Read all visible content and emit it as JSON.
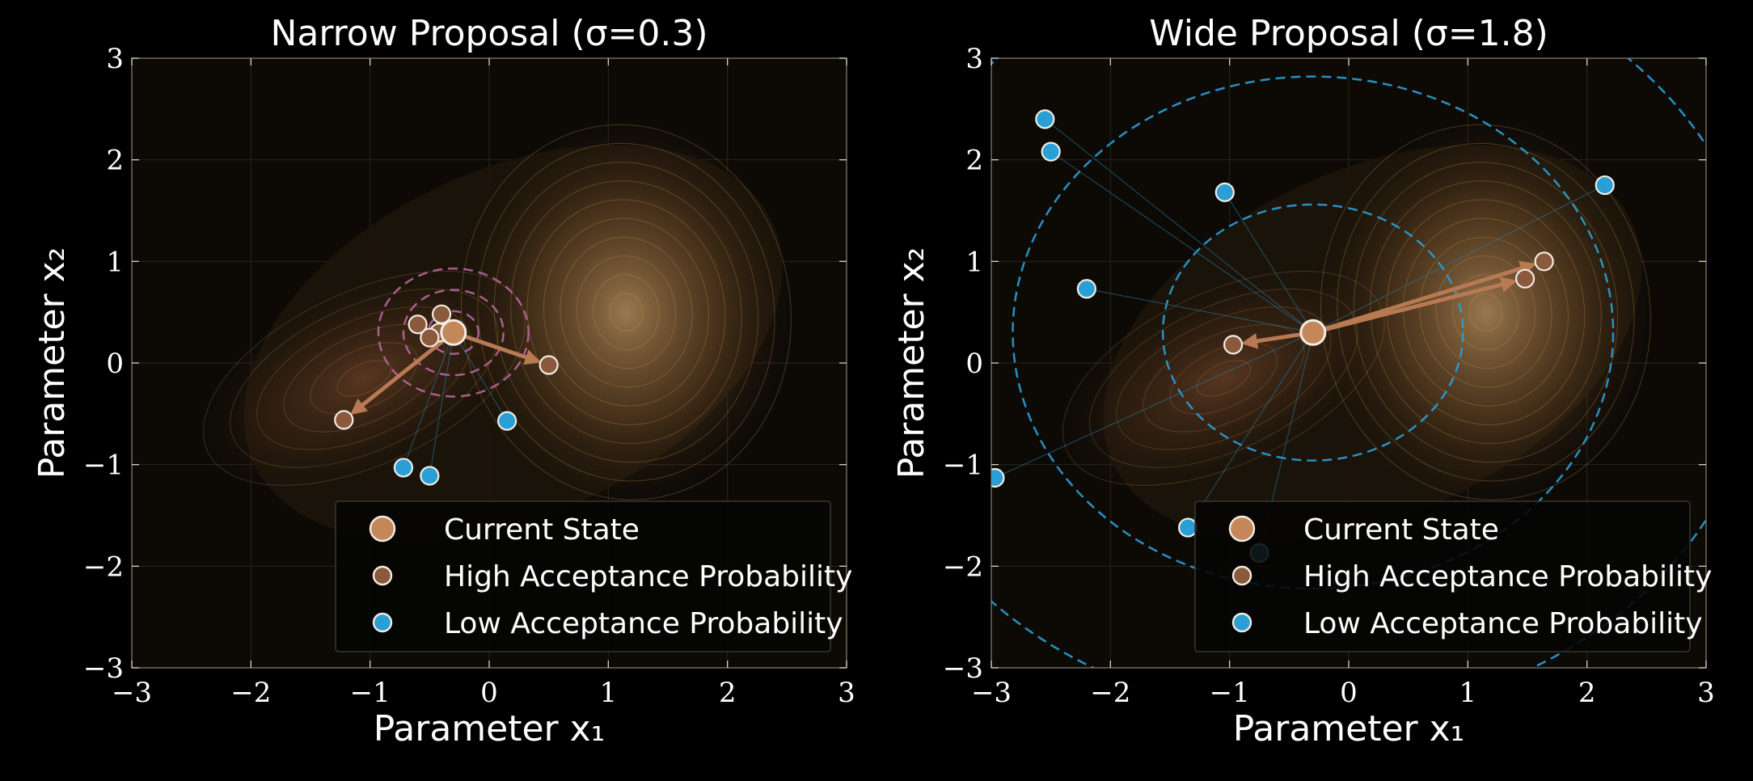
{
  "chart_data": [
    {
      "type": "scatter",
      "title": "Narrow Proposal (σ=0.3)",
      "xlabel": "Parameter x₁",
      "ylabel": "Parameter x₂",
      "xlim": [
        -3,
        3
      ],
      "ylim": [
        -3,
        3
      ],
      "xticks": [
        "−3",
        "−2",
        "−1",
        "0",
        "1",
        "2",
        "3"
      ],
      "yticks": [
        "−3",
        "−2",
        "−1",
        "0",
        "1",
        "2",
        "3"
      ],
      "grid": true,
      "legend_position": "lower-right",
      "sigma": 0.3,
      "proposal_ring_color": "#b5679a",
      "current_state": [
        -0.3,
        0.3
      ],
      "high_acceptance": [
        [
          -0.6,
          0.38
        ],
        [
          -0.4,
          0.48
        ],
        [
          -0.42,
          0.3
        ],
        [
          -0.5,
          0.25
        ],
        [
          0.5,
          -0.02
        ],
        [
          -1.22,
          -0.56
        ]
      ],
      "low_acceptance": [
        [
          0.15,
          -0.57
        ],
        [
          -0.72,
          -1.03
        ],
        [
          -0.5,
          -1.11
        ]
      ],
      "arrows_to": [
        [
          0.5,
          -0.02
        ],
        [
          -1.22,
          -0.56
        ]
      ]
    },
    {
      "type": "scatter",
      "title": "Wide Proposal (σ=1.8)",
      "xlabel": "Parameter x₁",
      "ylabel": "Parameter x₂",
      "xlim": [
        -3,
        3
      ],
      "ylim": [
        -3,
        3
      ],
      "xticks": [
        "−3",
        "−2",
        "−1",
        "0",
        "1",
        "2",
        "3"
      ],
      "yticks": [
        "−3",
        "−2",
        "−1",
        "0",
        "1",
        "2",
        "3"
      ],
      "grid": true,
      "legend_position": "lower-right",
      "sigma": 1.8,
      "proposal_ring_color": "#2a9fd6",
      "current_state": [
        -0.3,
        0.3
      ],
      "high_acceptance": [
        [
          -0.97,
          0.18
        ],
        [
          1.48,
          0.83
        ],
        [
          1.64,
          1.0
        ]
      ],
      "low_acceptance": [
        [
          -2.55,
          2.4
        ],
        [
          -2.5,
          2.08
        ],
        [
          -1.04,
          1.68
        ],
        [
          -2.2,
          0.73
        ],
        [
          2.15,
          1.75
        ],
        [
          -2.97,
          -1.13
        ],
        [
          -1.35,
          -1.62
        ],
        [
          -0.75,
          -1.87
        ]
      ],
      "arrows_to": [
        [
          -0.97,
          0.18
        ],
        [
          1.48,
          0.83
        ],
        [
          1.64,
          1.0
        ]
      ]
    }
  ],
  "legend": {
    "current": "Current State",
    "high": "High Acceptance Probability",
    "low": "Low Acceptance Probability"
  },
  "colors": {
    "current": "#c4875a",
    "high": "#8b5a3c",
    "low": "#2a9fd6",
    "arrow": "#b87a52",
    "contour": "#d9a45a"
  }
}
